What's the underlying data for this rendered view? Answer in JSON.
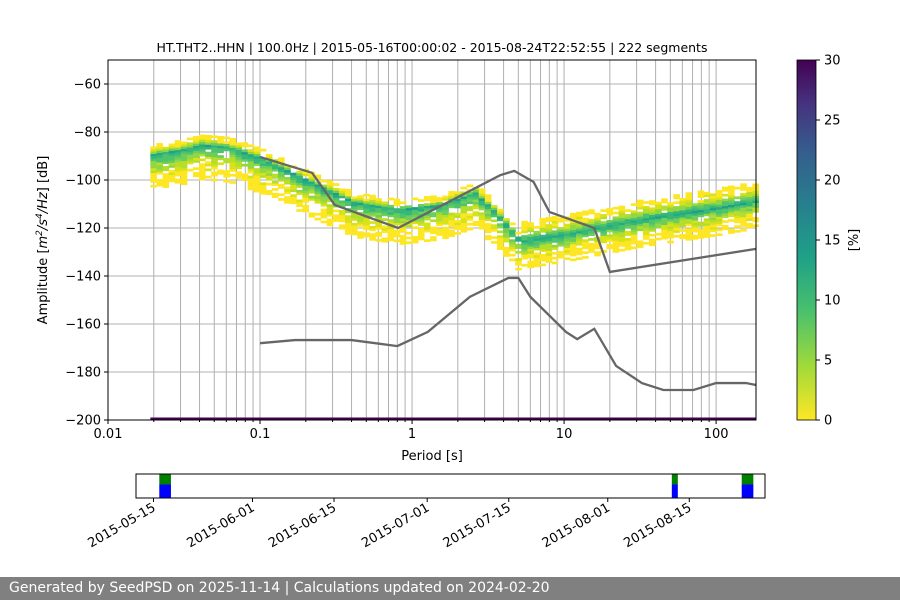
{
  "chart_data": {
    "type": "heatmap",
    "title": "HT.THT2..HHN | 100.0Hz | 2015-05-16T00:00:02 - 2015-08-24T22:52:55 | 222 segments",
    "xlabel": "Period [s]",
    "ylabel_parts": [
      "Amplitude [",
      "m",
      "2",
      "/s",
      "4",
      "/Hz",
      "] [dB]"
    ],
    "xscale": "log",
    "xlim": [
      0.01,
      183
    ],
    "ylim": [
      -200,
      -50
    ],
    "xticks": [
      {
        "v": 0.01,
        "label": "0.01"
      },
      {
        "v": 0.1,
        "label": "0.1"
      },
      {
        "v": 1,
        "label": "1"
      },
      {
        "v": 10,
        "label": "10"
      },
      {
        "v": 100,
        "label": "100"
      }
    ],
    "yticks": [
      -60,
      -80,
      -100,
      -120,
      -140,
      -160,
      -180,
      -200
    ],
    "grid": true,
    "density_mode": [
      [
        0.019,
        -90
      ],
      [
        0.03,
        -88
      ],
      [
        0.04,
        -86
      ],
      [
        0.06,
        -87
      ],
      [
        0.1,
        -92
      ],
      [
        0.2,
        -101
      ],
      [
        0.4,
        -110
      ],
      [
        0.8,
        -113
      ],
      [
        1.5,
        -111
      ],
      [
        2.5,
        -106
      ],
      [
        3.5,
        -115
      ],
      [
        5,
        -126
      ],
      [
        10,
        -123
      ],
      [
        30,
        -117
      ],
      [
        100,
        -112
      ],
      [
        183,
        -109
      ]
    ],
    "density_spread_db": {
      "below": 14,
      "above": 4
    },
    "noise_model_high": [
      [
        0.1,
        -90.4
      ],
      [
        0.22,
        -97
      ],
      [
        0.31,
        -110.4
      ],
      [
        0.81,
        -120
      ],
      [
        3.8,
        -98
      ],
      [
        4.7,
        -96.2
      ],
      [
        6.3,
        -100.8
      ],
      [
        8,
        -113.3
      ],
      [
        15.8,
        -120
      ],
      [
        20,
        -138.3
      ],
      [
        183,
        -128.7
      ]
    ],
    "noise_model_low": [
      [
        0.1,
        -168
      ],
      [
        0.17,
        -166.7
      ],
      [
        0.4,
        -166.7
      ],
      [
        0.8,
        -169.2
      ],
      [
        1.27,
        -163.3
      ],
      [
        2.4,
        -148.7
      ],
      [
        4.3,
        -140.8
      ],
      [
        5,
        -140.8
      ],
      [
        6,
        -148.7
      ],
      [
        10.3,
        -163.3
      ],
      [
        12.2,
        -166.3
      ],
      [
        15.8,
        -162
      ],
      [
        22,
        -177.5
      ],
      [
        32.5,
        -184.6
      ],
      [
        45,
        -187.5
      ],
      [
        71,
        -187.5
      ],
      [
        100,
        -184.6
      ],
      [
        157,
        -184.6
      ],
      [
        183,
        -185.4
      ]
    ],
    "colorbar": {
      "label": "[%]",
      "range": [
        0,
        30
      ],
      "ticks": [
        0,
        5,
        10,
        15,
        20,
        25,
        30
      ]
    },
    "timeline": {
      "ticks": [
        "2015-05-15",
        "2015-06-01",
        "2015-06-15",
        "2015-07-01",
        "2015-07-15",
        "2015-08-01",
        "2015-08-15"
      ],
      "range": [
        "2015-05-12",
        "2015-08-28"
      ],
      "segments": [
        [
          "2015-05-16",
          "2015-05-18"
        ],
        [
          "2015-08-12",
          "2015-08-13"
        ],
        [
          "2015-08-24",
          "2015-08-26"
        ]
      ]
    }
  },
  "footer": "Generated by SeedPSD on 2025-11-14 | Calculations updated on 2024-02-20"
}
